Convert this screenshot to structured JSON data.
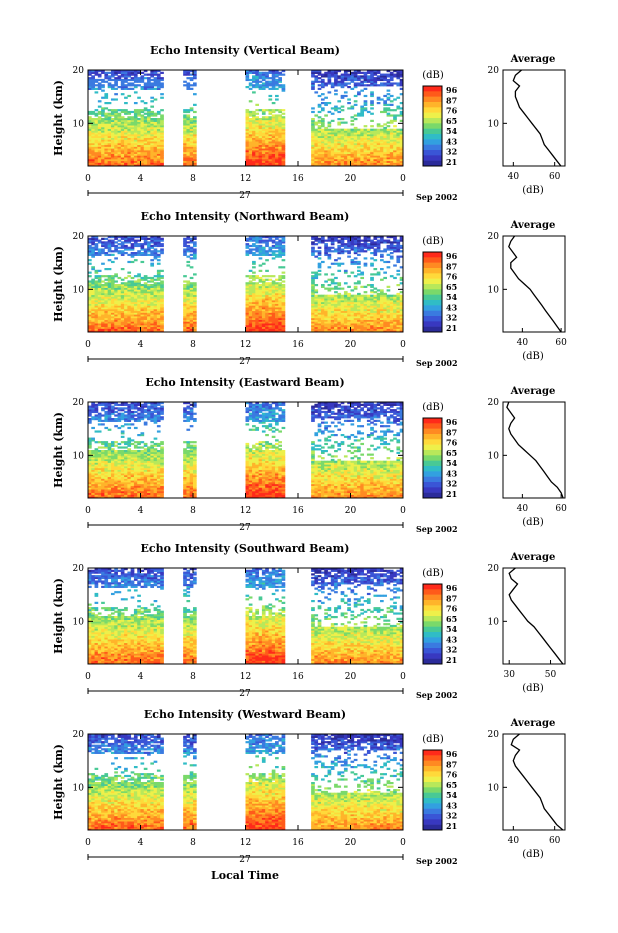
{
  "panels": [
    {
      "title": "Echo Intensity (Vertical Beam)",
      "avg_xticks": [
        "40",
        "60"
      ],
      "avg_xlim": [
        35,
        65
      ]
    },
    {
      "title": "Echo Intensity (Northward Beam)",
      "avg_xticks": [
        "40",
        "60"
      ],
      "avg_xlim": [
        30,
        62
      ]
    },
    {
      "title": "Echo Intensity (Eastward Beam)",
      "avg_xticks": [
        "40",
        "60"
      ],
      "avg_xlim": [
        30,
        62
      ]
    },
    {
      "title": "Echo Intensity (Southward Beam)",
      "avg_xticks": [
        "30",
        "50"
      ],
      "avg_xlim": [
        27,
        57
      ]
    },
    {
      "title": "Echo Intensity (Westward Beam)",
      "avg_xticks": [
        "40",
        "60"
      ],
      "avg_xlim": [
        35,
        65
      ]
    }
  ],
  "ylabel": "Height (km)",
  "yticks": [
    "20",
    "10"
  ],
  "xticks": [
    "0",
    "4",
    "8",
    "12",
    "16",
    "20",
    "0"
  ],
  "date_label": "27",
  "month_year": "Sep 2002",
  "xlabel_bottom": "Local Time",
  "colorbar": {
    "unit": "(dB)",
    "ticks": [
      "96",
      "87",
      "76",
      "65",
      "54",
      "43",
      "32",
      "21"
    ],
    "colors": [
      "#ff2a1a",
      "#ff5a1a",
      "#ff8a22",
      "#ffb42a",
      "#ffd93a",
      "#eef04a",
      "#b8e85a",
      "#7ad96a",
      "#48c995",
      "#30bcc6",
      "#32a0e0",
      "#3a7ae0",
      "#3a55d6",
      "#3838c0",
      "#2b2b9a"
    ]
  },
  "average": {
    "title": "Average",
    "xlabel": "(dB)",
    "yticks": [
      "20",
      "10"
    ]
  },
  "chart_data": {
    "type": "heatmap",
    "x_range": [
      0,
      24
    ],
    "y_range": [
      2,
      20
    ],
    "value_range": [
      21,
      96
    ],
    "data_gaps_hours": [
      [
        5.8,
        7.3
      ],
      [
        8.3,
        12.0
      ],
      [
        15.1,
        17.0
      ]
    ],
    "avg_profiles": [
      {
        "name": "Vertical",
        "height": [
          2,
          3,
          4,
          5,
          6,
          7,
          8,
          9,
          10,
          11,
          12,
          13,
          14,
          15,
          16,
          17,
          18,
          19,
          20
        ],
        "values": [
          63,
          61,
          59,
          57,
          55,
          54,
          53,
          51,
          49,
          47,
          45,
          43,
          42,
          41,
          41,
          43,
          40,
          41,
          44
        ]
      },
      {
        "name": "Northward",
        "height": [
          2,
          3,
          4,
          5,
          6,
          7,
          8,
          9,
          10,
          11,
          12,
          13,
          14,
          15,
          16,
          17,
          18,
          19,
          20
        ],
        "values": [
          60,
          58,
          56,
          54,
          52,
          50,
          48,
          46,
          44,
          41,
          38,
          36,
          34,
          34,
          37,
          35,
          33,
          34,
          36
        ]
      },
      {
        "name": "Eastward",
        "height": [
          2,
          3,
          4,
          5,
          6,
          7,
          8,
          9,
          10,
          11,
          12,
          13,
          14,
          15,
          16,
          17,
          18,
          19,
          20
        ],
        "values": [
          61,
          60,
          58,
          55,
          53,
          51,
          49,
          47,
          44,
          41,
          38,
          36,
          34,
          33,
          34,
          36,
          34,
          32,
          33
        ]
      },
      {
        "name": "Southward",
        "height": [
          2,
          3,
          4,
          5,
          6,
          7,
          8,
          9,
          10,
          11,
          12,
          13,
          14,
          15,
          16,
          17,
          18,
          19,
          20
        ],
        "values": [
          56,
          54,
          52,
          50,
          48,
          46,
          44,
          42,
          39,
          37,
          35,
          33,
          31,
          30,
          32,
          34,
          31,
          30,
          33
        ]
      },
      {
        "name": "Westward",
        "height": [
          2,
          3,
          4,
          5,
          6,
          7,
          8,
          9,
          10,
          11,
          12,
          13,
          14,
          15,
          16,
          17,
          18,
          19,
          20
        ],
        "values": [
          64,
          61,
          59,
          57,
          55,
          54,
          53,
          51,
          49,
          47,
          45,
          43,
          41,
          40,
          41,
          43,
          39,
          40,
          43
        ]
      }
    ]
  }
}
